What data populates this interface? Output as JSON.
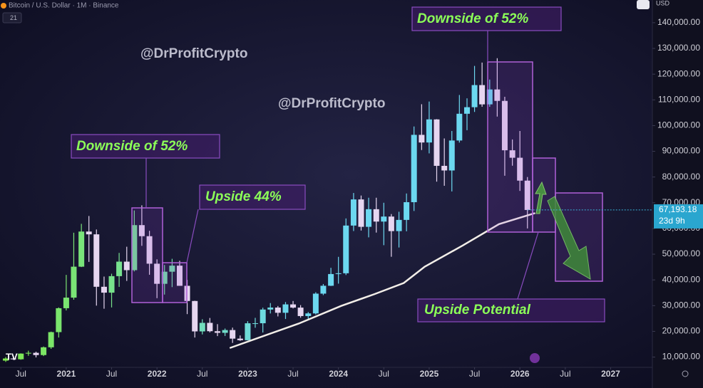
{
  "chart_data": {
    "type": "candlestick",
    "title": "Bitcoin / U.S. Dollar · 1M · Binance",
    "interval_badge": "21",
    "currency": "USD",
    "x": [
      2020.333,
      2020.417,
      2020.5,
      2020.583,
      2020.667,
      2020.75,
      2020.833,
      2020.917,
      2021.0,
      2021.083,
      2021.167,
      2021.25,
      2021.333,
      2021.417,
      2021.5,
      2021.583,
      2021.667,
      2021.75,
      2021.833,
      2021.917,
      2022.0,
      2022.083,
      2022.167,
      2022.25,
      2022.333,
      2022.417,
      2022.5,
      2022.583,
      2022.667,
      2022.75,
      2022.833,
      2022.917,
      2023.0,
      2023.083,
      2023.167,
      2023.25,
      2023.333,
      2023.417,
      2023.5,
      2023.583,
      2023.667,
      2023.75,
      2023.833,
      2023.917,
      2024.0,
      2024.083,
      2024.167,
      2024.25,
      2024.333,
      2024.417,
      2024.5,
      2024.583,
      2024.667,
      2024.75,
      2024.833,
      2024.917,
      2025.0,
      2025.083,
      2025.167,
      2025.25,
      2025.333,
      2025.417,
      2025.5,
      2025.583,
      2025.667,
      2025.75,
      2025.833,
      2025.917,
      2026.0,
      2026.083
    ],
    "open": [
      8620,
      9450,
      9140,
      11350,
      11650,
      10780,
      13800,
      19700,
      28990,
      33110,
      45140,
      58800,
      57720,
      37330,
      35040,
      41460,
      47100,
      43790,
      61300,
      57000,
      46300,
      38480,
      43190,
      45540,
      37700,
      31800,
      19980,
      23300,
      20050,
      19430,
      20500,
      17170,
      16550,
      23140,
      23150,
      28480,
      29250,
      27220,
      30480,
      29230,
      25940,
      26970,
      34660,
      37720,
      42280,
      42580,
      61130,
      71290,
      60640,
      67490,
      62680,
      64630,
      58970,
      63330,
      70220,
      96400,
      93430,
      102400,
      84350,
      82550,
      94200,
      104600,
      107150,
      115750,
      108250,
      114050,
      109600,
      90400,
      87500,
      78600
    ],
    "high": [
      10000,
      10380,
      11450,
      12470,
      12090,
      14100,
      19900,
      29300,
      41950,
      58350,
      61800,
      64850,
      59600,
      41300,
      42400,
      50500,
      52900,
      67000,
      69000,
      59100,
      48000,
      45800,
      48200,
      47450,
      40000,
      31900,
      24700,
      25200,
      22800,
      21100,
      21450,
      18400,
      23950,
      25250,
      29200,
      31000,
      29850,
      31400,
      31800,
      30200,
      27500,
      35200,
      38400,
      44700,
      48970,
      63900,
      73800,
      72800,
      71950,
      71950,
      70000,
      65600,
      66500,
      73600,
      99650,
      108300,
      109350,
      102500,
      95000,
      97900,
      111900,
      110600,
      123200,
      124500,
      117900,
      126200,
      111200,
      94600,
      97900,
      80000
    ],
    "low": [
      8130,
      8900,
      8970,
      10500,
      9870,
      10390,
      13200,
      17600,
      28130,
      32300,
      45000,
      47000,
      30000,
      28800,
      29300,
      37300,
      39600,
      43300,
      53250,
      42000,
      32900,
      34300,
      37200,
      37700,
      26700,
      17600,
      18800,
      19600,
      18150,
      18200,
      15500,
      16300,
      16500,
      21400,
      19550,
      26950,
      25800,
      24800,
      28900,
      25300,
      24900,
      26550,
      34100,
      37630,
      38550,
      41900,
      59000,
      59200,
      56550,
      58400,
      53500,
      49000,
      52600,
      58900,
      66800,
      90500,
      89200,
      78200,
      76600,
      74400,
      93400,
      98200,
      105300,
      107300,
      107300,
      103500,
      80500,
      84400,
      74600,
      60000
    ],
    "close": [
      9450,
      9140,
      11350,
      11650,
      10780,
      13800,
      19700,
      28990,
      33110,
      45140,
      58800,
      57720,
      37330,
      35040,
      41460,
      47100,
      43790,
      61300,
      57000,
      46300,
      38480,
      43190,
      45540,
      37700,
      31800,
      19980,
      23300,
      20050,
      19430,
      20500,
      17170,
      16550,
      23140,
      23150,
      28480,
      29250,
      27220,
      30480,
      29230,
      25940,
      26970,
      34660,
      37720,
      42280,
      42580,
      61130,
      71290,
      60640,
      67490,
      62680,
      64630,
      58970,
      63330,
      70220,
      96400,
      93430,
      102400,
      84350,
      82550,
      94200,
      104600,
      107150,
      115750,
      108250,
      114050,
      109600,
      90400,
      87500,
      78600,
      67193.18
    ],
    "up_color_start": "#7ee84c",
    "up_color_end": "#6cd8f0",
    "down_color": "#e6d6f0",
    "ma": {
      "x": [
        2022.81,
        2023.2,
        2023.56,
        2024.03,
        2024.4,
        2024.72,
        2024.95,
        2025.37,
        2025.77,
        2026.16
      ],
      "values": [
        13600,
        18500,
        23000,
        29900,
        34500,
        38800,
        45100,
        53400,
        61700,
        65900
      ],
      "color": "#f2eee8"
    },
    "last_price_label": "67,193.18",
    "countdown": "23d 9h",
    "xlim": [
      2020.27,
      2027.46
    ],
    "ylim": [
      6000,
      148000
    ],
    "xticks": [
      {
        "value": 2020.5,
        "label": "Jul"
      },
      2021,
      {
        "value": 2021.5,
        "label": "Jul"
      },
      2022,
      {
        "value": 2022.5,
        "label": "Jul"
      },
      2023,
      {
        "value": 2023.5,
        "label": "Jul"
      },
      2024,
      {
        "value": 2024.5,
        "label": "Jul"
      },
      2025,
      {
        "value": 2025.5,
        "label": "Jul"
      },
      2026,
      {
        "value": 2026.5,
        "label": "Jul"
      },
      2027
    ],
    "yticks": [
      {
        "value": 10000,
        "label": "10,000.00"
      },
      {
        "value": 20000,
        "label": "20,000.00"
      },
      {
        "value": 30000,
        "label": "30,000.00"
      },
      {
        "value": 40000,
        "label": "40,000.00"
      },
      {
        "value": 50000,
        "label": "50,000.00"
      },
      {
        "value": 60000,
        "label": "60,000.00"
      },
      {
        "value": 70000,
        "label": "70,000.00"
      },
      {
        "value": 80000,
        "label": "80,000.00"
      },
      {
        "value": 90000,
        "label": "90,000.00"
      },
      {
        "value": 100000,
        "label": "100,000.00"
      },
      {
        "value": 110000,
        "label": "110,000.00"
      },
      {
        "value": 120000,
        "label": "120,000.00"
      },
      {
        "value": 130000,
        "label": "130,000.00"
      },
      {
        "value": 140000,
        "label": "140,000.00"
      }
    ],
    "annotations": [
      "Downside of 52%",
      "Upside 44%",
      "Downside of 52%",
      "Upside Potential"
    ],
    "watermarks": [
      "@DrProfitCrypto",
      "@DrProfitCrypto"
    ]
  }
}
